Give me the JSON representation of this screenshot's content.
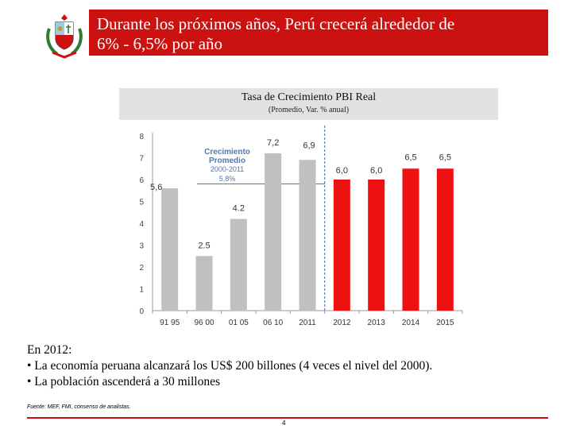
{
  "header": {
    "title": "Durante los próximos años, Perú crecerá alrededor   de\n6% - 6,5% por año"
  },
  "colors": {
    "header_bg": "#cc1111",
    "historical_bar": "#c0c0c0",
    "projection_bar": "#ee1111",
    "reference_line": "#5577aa",
    "separator_line": "#5a7fb8",
    "callout_text": "#5577aa"
  },
  "chart_header": {
    "title": "Tasa de Crecimiento PBI Real",
    "subtitle": "(Promedio, Var. % anual)"
  },
  "chart_data": {
    "type": "bar",
    "title": "Tasa de Crecimiento PBI Real",
    "subtitle": "(Promedio, Var. % anual)",
    "categories": [
      "91 95",
      "96 00",
      "01 05",
      "06 10",
      "2011",
      "2012",
      "2013",
      "2014",
      "2015"
    ],
    "values": [
      5.6,
      2.5,
      4.2,
      7.2,
      6.9,
      6.0,
      6.0,
      6.5,
      6.5
    ],
    "value_labels": [
      "5,6",
      "2.5",
      "4.2",
      "7,2",
      "6,9",
      "6,0",
      "6,0",
      "6,5",
      "6,5"
    ],
    "bar_kinds": [
      "historical",
      "historical",
      "historical",
      "historical",
      "historical",
      "projection",
      "projection",
      "projection",
      "projection"
    ],
    "ylim": [
      0,
      8
    ],
    "yticks": [
      "0",
      "1",
      "2",
      "3",
      "4",
      "5",
      "6",
      "7",
      "8"
    ],
    "xlabel": "",
    "ylabel": "",
    "reference_value": 5.8,
    "annotation": {
      "lines": [
        "Crecimiento",
        "Promedio",
        "2000-2011",
        "5,8%"
      ]
    }
  },
  "body_text": {
    "heading": "En 2012:",
    "bullets": [
      "• La economía peruana alcanzará los US$ 200 billones (4 veces el nivel del 2000).",
      "• La población ascenderá a 30 millones"
    ]
  },
  "footer": {
    "source": "Fuente: MEF, FMI, consenso de analistas.",
    "page_number": "4"
  }
}
